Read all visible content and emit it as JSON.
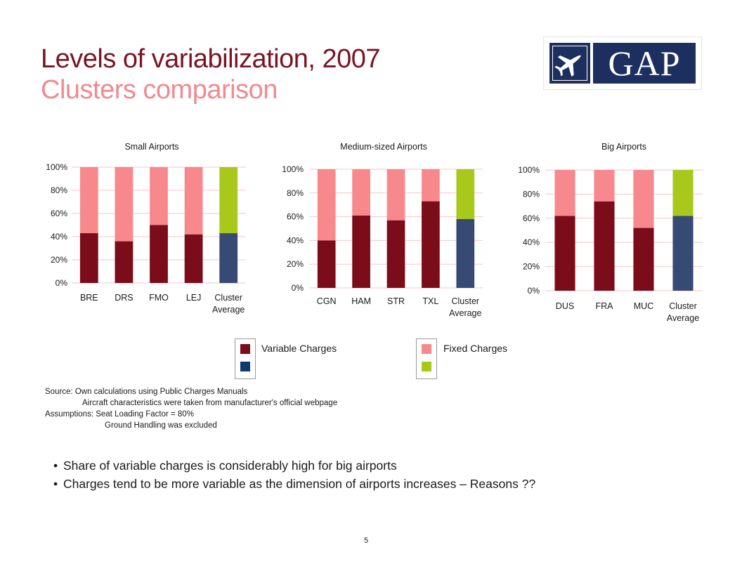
{
  "header": {
    "title": "Levels of variabilization, 2007",
    "subtitle": "Clusters comparison"
  },
  "logo": {
    "text": "GAP",
    "icon": "airplane-icon",
    "color": "#1d2f5e"
  },
  "colors": {
    "variable": "#7b0c1a",
    "fixed": "#f7898d",
    "cluster_variable": "#364a74",
    "cluster_fixed": "#a8c81c",
    "legend_cluster_variable": "#0e3a6e"
  },
  "chart_data": [
    {
      "type": "bar",
      "stacked": true,
      "title": "Small Airports",
      "categories": [
        "BRE",
        "DRS",
        "FMO",
        "LEJ",
        "Cluster Average"
      ],
      "series": [
        {
          "name": "Variable Charges",
          "values": [
            43,
            36,
            50,
            42,
            43
          ]
        },
        {
          "name": "Fixed Charges",
          "values": [
            57,
            64,
            50,
            58,
            57
          ]
        }
      ],
      "ylim": [
        0,
        100
      ],
      "yticks": [
        "0%",
        "20%",
        "40%",
        "60%",
        "80%",
        "100%"
      ],
      "grid": true
    },
    {
      "type": "bar",
      "stacked": true,
      "title": "Medium-sized Airports",
      "categories": [
        "CGN",
        "HAM",
        "STR",
        "TXL",
        "Cluster Average"
      ],
      "series": [
        {
          "name": "Variable Charges",
          "values": [
            40,
            61,
            57,
            73,
            58
          ]
        },
        {
          "name": "Fixed Charges",
          "values": [
            60,
            39,
            43,
            27,
            42
          ]
        }
      ],
      "ylim": [
        0,
        100
      ],
      "yticks": [
        "0%",
        "20%",
        "40%",
        "60%",
        "80%",
        "100%"
      ],
      "grid": true
    },
    {
      "type": "bar",
      "stacked": true,
      "title": "Big Airports",
      "categories": [
        "DUS",
        "FRA",
        "MUC",
        "Cluster Average"
      ],
      "series": [
        {
          "name": "Variable Charges",
          "values": [
            62,
            74,
            52,
            62
          ]
        },
        {
          "name": "Fixed Charges",
          "values": [
            38,
            26,
            48,
            38
          ]
        }
      ],
      "ylim": [
        0,
        100
      ],
      "yticks": [
        "0%",
        "20%",
        "40%",
        "60%",
        "80%",
        "100%"
      ],
      "grid": true
    }
  ],
  "legend": {
    "variable_label": "Variable Charges",
    "fixed_label": "Fixed Charges"
  },
  "notes": {
    "source_1": "Source: Own calculations using Public Charges Manuals",
    "source_2": "Aircraft characteristics were taken from manufacturer's official webpage",
    "assumptions_1": "Assumptions: Seat Loading Factor = 80%",
    "assumptions_2": "Ground Handling was excluded"
  },
  "bullets": [
    "Share of variable charges is considerably high for big airports",
    "Charges tend to be more variable as the dimension of airports increases – Reasons ??"
  ],
  "page_number": "5"
}
